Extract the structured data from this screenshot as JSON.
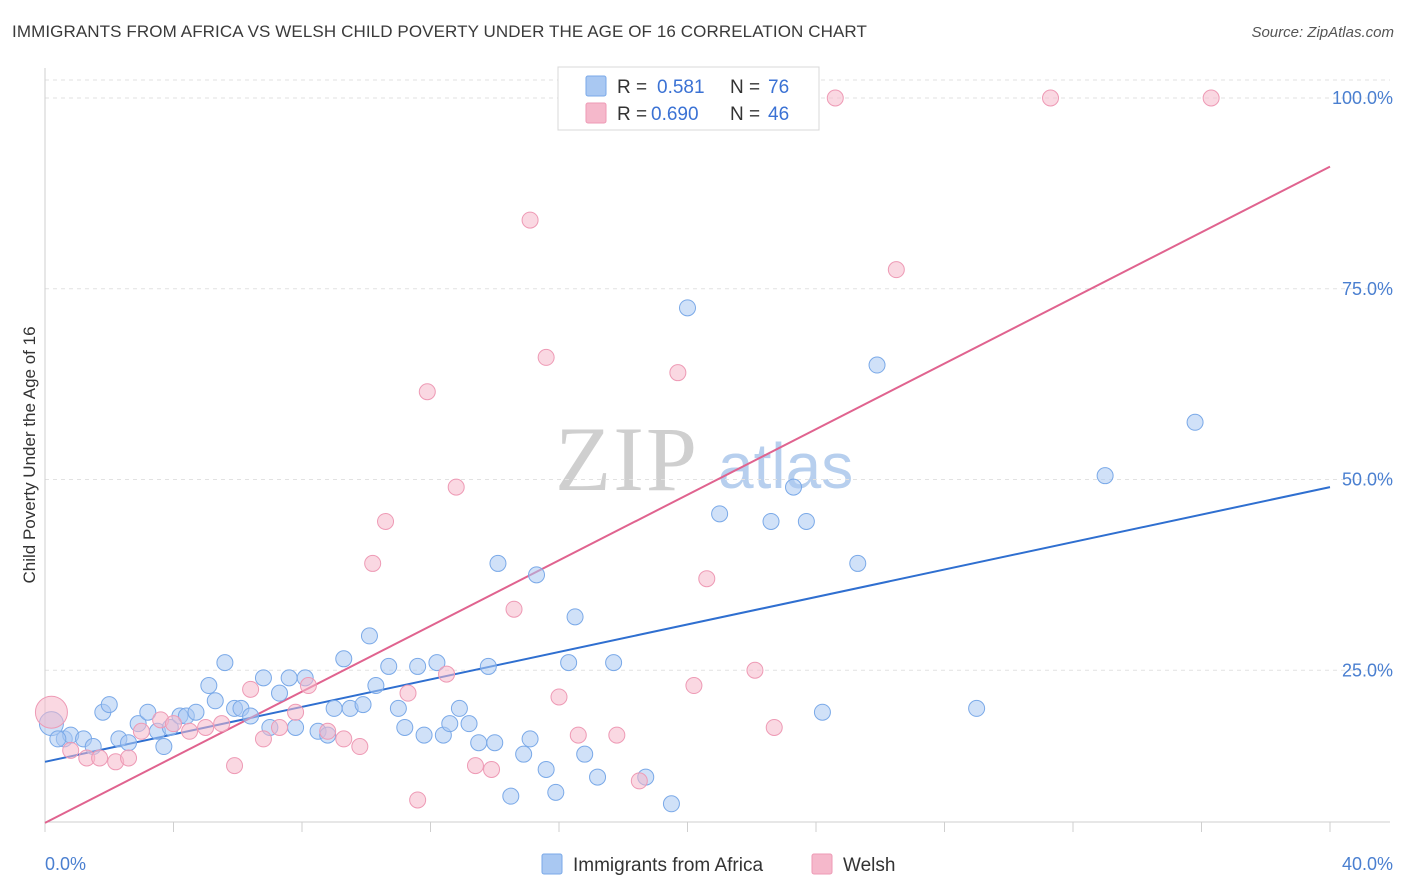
{
  "header": {
    "title": "IMMIGRANTS FROM AFRICA VS WELSH CHILD POVERTY UNDER THE AGE OF 16 CORRELATION CHART",
    "source": "Source: ZipAtlas.com"
  },
  "watermark": {
    "zip": "ZIP",
    "atlas": "atlas"
  },
  "legend": {
    "rows": [
      {
        "r_label": "R =",
        "r_value": "0.581",
        "n_label": "N =",
        "n_value": "76",
        "color": "#a9c8f2"
      },
      {
        "r_label": "R =",
        "r_value": "0.690",
        "n_label": "N =",
        "n_value": "46",
        "color": "#f5b8cb"
      }
    ]
  },
  "bottom_legend": {
    "items": [
      {
        "label": "Immigrants from Africa",
        "color": "#a9c8f2"
      },
      {
        "label": "Welsh",
        "color": "#f5b8cb"
      }
    ]
  },
  "chart_data": {
    "type": "scatter",
    "title": "IMMIGRANTS FROM AFRICA VS WELSH CHILD POVERTY UNDER THE AGE OF 16 CORRELATION CHART",
    "ylabel": "Child Poverty Under the Age of 16",
    "xlabel": "",
    "xlim": [
      0,
      40
    ],
    "ylim": [
      0,
      103
    ],
    "x_tick_labels": [
      "0.0%",
      "40.0%"
    ],
    "y_ticks": [
      25,
      50,
      75,
      100
    ],
    "y_tick_labels": [
      "25.0%",
      "50.0%",
      "75.0%",
      "100.0%"
    ],
    "grid": true,
    "legend_position": "top-center",
    "series": [
      {
        "name": "Immigrants from Africa",
        "color": "#7aa9e8",
        "fill": "#a9c8f2",
        "trend": {
          "x": [
            0,
            40
          ],
          "y": [
            13.0,
            49.0
          ],
          "color": "#2f6fd0"
        },
        "points": [
          [
            0.2,
            18.0
          ],
          [
            0.6,
            16.0
          ],
          [
            0.8,
            16.5
          ],
          [
            1.2,
            16.0
          ],
          [
            1.5,
            15.0
          ],
          [
            1.8,
            19.5
          ],
          [
            2.0,
            20.5
          ],
          [
            2.3,
            16.0
          ],
          [
            2.6,
            15.5
          ],
          [
            2.9,
            18.0
          ],
          [
            3.2,
            19.5
          ],
          [
            3.5,
            17.0
          ],
          [
            3.7,
            15.0
          ],
          [
            3.9,
            17.5
          ],
          [
            4.2,
            19.0
          ],
          [
            4.4,
            19.0
          ],
          [
            4.7,
            19.5
          ],
          [
            5.1,
            23.0
          ],
          [
            5.3,
            21.0
          ],
          [
            5.6,
            26.0
          ],
          [
            5.9,
            20.0
          ],
          [
            6.1,
            20.0
          ],
          [
            6.4,
            19.0
          ],
          [
            6.8,
            24.0
          ],
          [
            7.0,
            17.5
          ],
          [
            7.3,
            22.0
          ],
          [
            7.6,
            24.0
          ],
          [
            7.8,
            17.5
          ],
          [
            8.1,
            24.0
          ],
          [
            8.5,
            17.0
          ],
          [
            8.8,
            16.5
          ],
          [
            9.0,
            20.0
          ],
          [
            9.3,
            26.5
          ],
          [
            9.5,
            20.0
          ],
          [
            9.9,
            20.5
          ],
          [
            10.1,
            29.5
          ],
          [
            10.3,
            23.0
          ],
          [
            10.7,
            25.5
          ],
          [
            11.0,
            20.0
          ],
          [
            11.2,
            17.5
          ],
          [
            11.6,
            25.5
          ],
          [
            11.8,
            16.5
          ],
          [
            12.2,
            26.0
          ],
          [
            12.4,
            16.5
          ],
          [
            12.6,
            18.0
          ],
          [
            12.9,
            20.0
          ],
          [
            13.2,
            18.0
          ],
          [
            13.5,
            15.5
          ],
          [
            13.8,
            25.5
          ],
          [
            14.0,
            15.5
          ],
          [
            14.1,
            39.0
          ],
          [
            14.5,
            8.5
          ],
          [
            14.9,
            14.0
          ],
          [
            15.1,
            16.0
          ],
          [
            15.3,
            37.5
          ],
          [
            15.6,
            12.0
          ],
          [
            15.9,
            9.0
          ],
          [
            16.3,
            26.0
          ],
          [
            16.5,
            32.0
          ],
          [
            16.8,
            14.0
          ],
          [
            17.2,
            11.0
          ],
          [
            17.7,
            26.0
          ],
          [
            18.7,
            11.0
          ],
          [
            19.5,
            7.5
          ],
          [
            20.0,
            72.5
          ],
          [
            21.0,
            45.5
          ],
          [
            22.6,
            44.5
          ],
          [
            23.3,
            49.0
          ],
          [
            23.7,
            44.5
          ],
          [
            24.2,
            19.5
          ],
          [
            25.3,
            39.0
          ],
          [
            25.9,
            65.0
          ],
          [
            29.0,
            20.0
          ],
          [
            33.0,
            50.5
          ],
          [
            35.8,
            57.5
          ],
          [
            0.4,
            16.0
          ]
        ]
      },
      {
        "name": "Welsh",
        "color": "#ee9ab5",
        "fill": "#f5b8cb",
        "trend": {
          "x": [
            0,
            40
          ],
          "y": [
            5.0,
            91.0
          ],
          "color": "#e0638f"
        },
        "points": [
          [
            0.2,
            19.5
          ],
          [
            0.8,
            14.5
          ],
          [
            1.3,
            13.5
          ],
          [
            1.7,
            13.5
          ],
          [
            2.2,
            13.0
          ],
          [
            2.6,
            13.5
          ],
          [
            3.0,
            17.0
          ],
          [
            3.6,
            18.5
          ],
          [
            4.0,
            18.0
          ],
          [
            4.5,
            17.0
          ],
          [
            5.0,
            17.5
          ],
          [
            5.5,
            18.0
          ],
          [
            5.9,
            12.5
          ],
          [
            6.4,
            22.5
          ],
          [
            6.8,
            16.0
          ],
          [
            7.3,
            17.5
          ],
          [
            7.8,
            19.5
          ],
          [
            8.2,
            23.0
          ],
          [
            8.8,
            17.0
          ],
          [
            9.3,
            16.0
          ],
          [
            9.8,
            15.0
          ],
          [
            10.2,
            39.0
          ],
          [
            10.6,
            44.5
          ],
          [
            11.3,
            22.0
          ],
          [
            11.6,
            8.0
          ],
          [
            11.9,
            61.5
          ],
          [
            12.5,
            24.5
          ],
          [
            12.8,
            49.0
          ],
          [
            13.4,
            12.5
          ],
          [
            13.9,
            12.0
          ],
          [
            14.6,
            33.0
          ],
          [
            15.1,
            84.0
          ],
          [
            15.6,
            66.0
          ],
          [
            16.0,
            21.5
          ],
          [
            16.6,
            16.5
          ],
          [
            17.8,
            16.5
          ],
          [
            18.5,
            10.5
          ],
          [
            19.7,
            64.0
          ],
          [
            20.2,
            23.0
          ],
          [
            20.6,
            37.0
          ],
          [
            22.1,
            25.0
          ],
          [
            22.7,
            17.5
          ],
          [
            24.6,
            100.0
          ],
          [
            26.5,
            77.5
          ],
          [
            31.3,
            100.0
          ],
          [
            36.3,
            100.0
          ]
        ]
      }
    ]
  }
}
